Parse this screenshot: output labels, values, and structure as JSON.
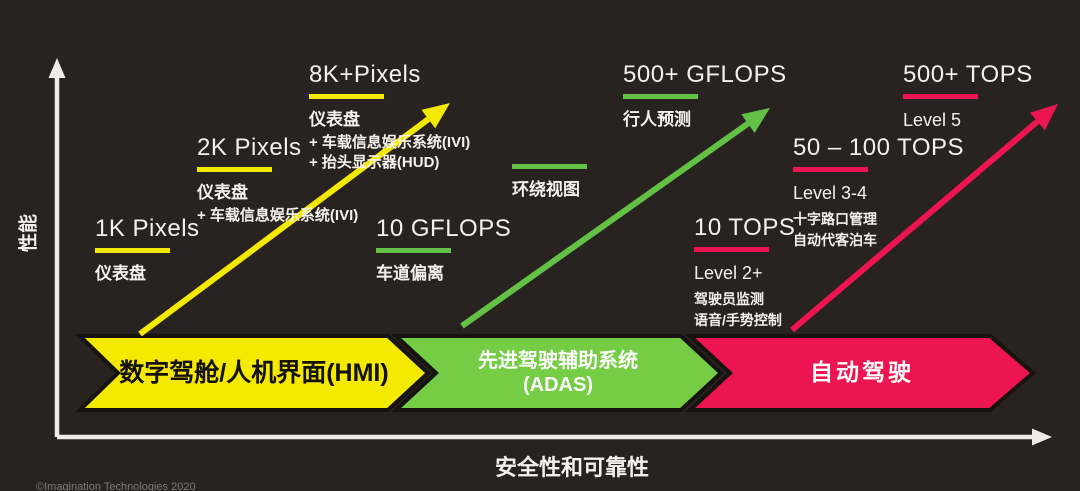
{
  "colors": {
    "background": "#282320",
    "yellow": "#f4e900",
    "green": "#74cd44",
    "green_line": "#63c246",
    "pink": "#ed1551",
    "axis": "#efece6",
    "text": "#f4f1eb",
    "outline": "#17130f"
  },
  "axes": {
    "y_label": "性能",
    "x_label": "安全性和可靠性"
  },
  "footer": {
    "copyright": "©Imagination Technologies 2020"
  },
  "milestones": [
    {
      "id": "1k-pixels",
      "title": "1K Pixels",
      "bar_color": "yellow",
      "lines": [
        {
          "text": "仪表盘",
          "style": "lg"
        }
      ]
    },
    {
      "id": "2k-pixels",
      "title": "2K Pixels",
      "bar_color": "yellow",
      "lines": [
        {
          "text": "仪表盘",
          "style": "lg"
        },
        {
          "text": "+ 车载信息娱乐系统(IVI)",
          "style": "md"
        }
      ]
    },
    {
      "id": "8k-pixels",
      "title": "8K+Pixels",
      "bar_color": "yellow",
      "lines": [
        {
          "text": "仪表盘",
          "style": "lg"
        },
        {
          "text": "+ 车载信息娱乐系统(IVI)",
          "style": "md"
        },
        {
          "text": "+ 抬头显示器(HUD)",
          "style": "md"
        }
      ]
    },
    {
      "id": "10-gflops",
      "title": "10 GFLOPS",
      "bar_color": "green_line",
      "lines": [
        {
          "text": "车道偏离",
          "style": "lg"
        }
      ]
    },
    {
      "id": "surround-view",
      "title": "",
      "bar_color": "green_line",
      "lines": [
        {
          "text": "环绕视图",
          "style": "lg"
        }
      ]
    },
    {
      "id": "500-gflops",
      "title": "500+ GFLOPS",
      "bar_color": "green_line",
      "lines": [
        {
          "text": "行人预测",
          "style": "lg"
        }
      ]
    },
    {
      "id": "10-tops",
      "title": "10 TOPS",
      "bar_color": "pink",
      "lines": [
        {
          "text": "Level 2+",
          "style": "level"
        },
        {
          "text": "驾驶员监测",
          "style": "sm"
        },
        {
          "text": "语音/手势控制",
          "style": "sm"
        }
      ]
    },
    {
      "id": "50-100-tops",
      "title": "50 – 100 TOPS",
      "bar_color": "pink",
      "lines": [
        {
          "text": "Level 3-4",
          "style": "level"
        },
        {
          "text": "十字路口管理",
          "style": "sm"
        },
        {
          "text": "自动代客泊车",
          "style": "sm"
        }
      ]
    },
    {
      "id": "500-tops",
      "title": "500+ TOPS",
      "bar_color": "pink",
      "lines": [
        {
          "text": "Level 5",
          "style": "level"
        }
      ]
    }
  ],
  "stages": [
    {
      "id": "hmi",
      "lines": [
        "数字驾舱/人机界面(HMI)"
      ],
      "color": "yellow",
      "text_color": "#14100a"
    },
    {
      "id": "adas",
      "lines": [
        "先进驾驶辅助系统",
        "(ADAS)"
      ],
      "color": "green",
      "text_color": "#fdfdfb"
    },
    {
      "id": "autonomous",
      "lines": [
        "自动驾驶"
      ],
      "color": "pink",
      "text_color": "#fdfdfb"
    }
  ]
}
